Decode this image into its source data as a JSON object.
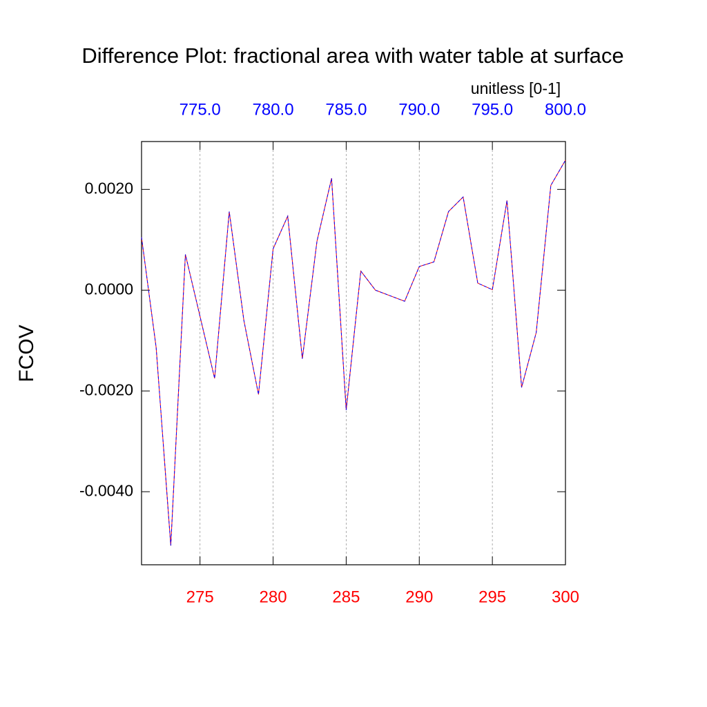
{
  "chart_data": {
    "type": "line",
    "title": "Difference Plot: fractional area with water table at surface",
    "x2_label": "unitless [0-1]",
    "ylabel": "FCOV",
    "x": [
      271,
      272,
      273,
      274,
      275,
      276,
      277,
      278,
      279,
      280,
      281,
      282,
      283,
      284,
      285,
      286,
      287,
      288,
      289,
      290,
      291,
      292,
      293,
      294,
      295,
      296,
      297,
      298,
      299,
      300
    ],
    "series": [
      {
        "color": "#ff0000",
        "dash": false,
        "values": [
          0.00105,
          -0.00114,
          -0.00507,
          0.00071,
          -0.00052,
          -0.00175,
          0.00156,
          -0.0006,
          -0.00207,
          0.00082,
          0.00147,
          -0.00136,
          0.00097,
          0.00222,
          -0.00238,
          0.00038,
          0.0,
          -0.00011,
          -0.00022,
          0.00047,
          0.00056,
          0.00156,
          0.00185,
          0.00014,
          1e-05,
          0.00178,
          -0.00193,
          -0.00084,
          0.00208,
          0.00258
        ]
      },
      {
        "color": "#0000ff",
        "dash": true,
        "values": [
          0.00105,
          -0.00114,
          -0.00507,
          0.00071,
          -0.00052,
          -0.00175,
          0.00156,
          -0.0006,
          -0.00207,
          0.00082,
          0.00147,
          -0.00136,
          0.00097,
          0.00222,
          -0.00238,
          0.00038,
          0.0,
          -0.00011,
          -0.00022,
          0.00047,
          0.00056,
          0.00156,
          0.00185,
          0.00014,
          1e-05,
          0.00178,
          -0.00193,
          -0.00084,
          0.00208,
          0.00258
        ]
      }
    ],
    "xlim": [
      271,
      300
    ],
    "xticks": [
      275,
      280,
      285,
      290,
      295,
      300
    ],
    "xtick_color": "#ff0000",
    "x2lim": [
      771,
      800
    ],
    "x2ticks": [
      {
        "value": 775,
        "label": "775.0"
      },
      {
        "value": 780,
        "label": "780.0"
      },
      {
        "value": 785,
        "label": "785.0"
      },
      {
        "value": 790,
        "label": "790.0"
      },
      {
        "value": 795,
        "label": "795.0"
      },
      {
        "value": 800,
        "label": "800.0"
      }
    ],
    "x2tick_color": "#0000ff",
    "ylim": [
      -0.00545,
      0.00295
    ],
    "yticks": [
      {
        "value": -0.004,
        "label": "-0.0040"
      },
      {
        "value": -0.002,
        "label": "-0.0020"
      },
      {
        "value": 0,
        "label": "0.0000"
      },
      {
        "value": 0.002,
        "label": "0.0020"
      }
    ],
    "grid": true
  }
}
